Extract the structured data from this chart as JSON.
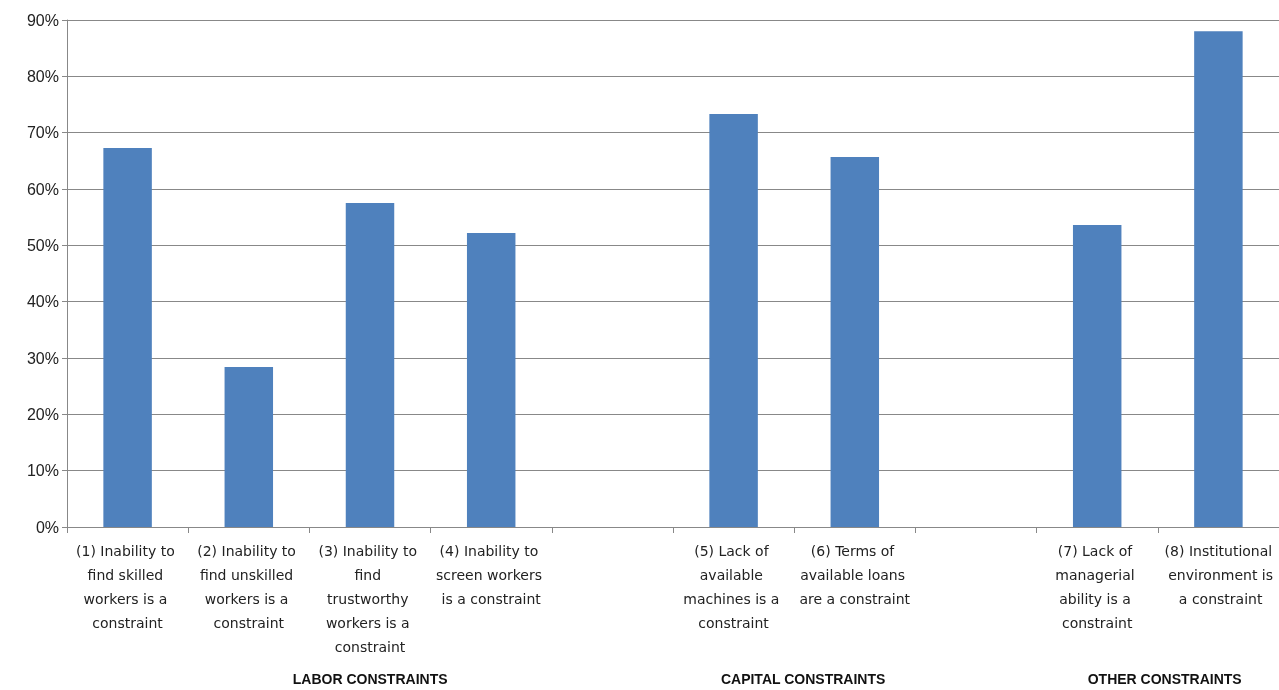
{
  "chart_data": {
    "type": "bar",
    "categories": [
      "(1) Inability to find skilled workers is a constraint",
      "(2) Inability to find unskilled workers is a constraint",
      "(3) Inability to find trustworthy workers is a constraint",
      "(4) Inability to screen workers is a constraint",
      null,
      "(5) Lack of available machines is a constraint",
      "(6) Terms of available loans are a constraint",
      null,
      "(7) Lack of managerial ability is a constraint",
      "(8) Institutional environment is a constraint"
    ],
    "values": [
      67.3,
      28.4,
      57.5,
      52.2,
      null,
      73.3,
      65.7,
      null,
      53.6,
      88.0
    ],
    "color": "#4f81bd",
    "ylim": [
      0,
      90
    ],
    "yticks": [
      {
        "value": 0,
        "label": "0%"
      },
      {
        "value": 10,
        "label": "10%"
      },
      {
        "value": 20,
        "label": "20%"
      },
      {
        "value": 30,
        "label": "30%"
      },
      {
        "value": 40,
        "label": "40%"
      },
      {
        "value": 50,
        "label": "50%"
      },
      {
        "value": 60,
        "label": "60%"
      },
      {
        "value": 70,
        "label": "70%"
      },
      {
        "value": 80,
        "label": "80%"
      },
      {
        "value": 90,
        "label": "90%"
      }
    ],
    "grid": "y",
    "annotations": [
      "LABOR CONSTRAINTS",
      "CAPITAL CONSTRAINTS",
      "OTHER CONSTRAINTS"
    ]
  }
}
